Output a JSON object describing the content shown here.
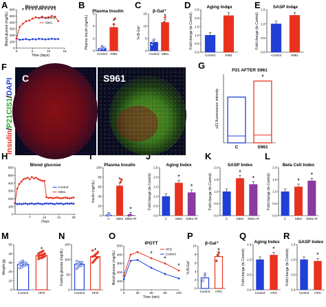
{
  "panels": {
    "A": {
      "letter": "A",
      "title": "Blood glucose",
      "ylabel": "Blood glucose (mg/dL)",
      "xlabel": "Time (days)",
      "legend": [
        "Control",
        "S961"
      ]
    },
    "B": {
      "letter": "B",
      "title": "Plasma Insulin",
      "ylabel": "Plasma insulin (ng/mL)"
    },
    "C": {
      "letter": "C",
      "title": "β-Gal⁺",
      "ylabel": "%-B-Gal⁺"
    },
    "D": {
      "letter": "D",
      "title": "Aging Index",
      "ylabel": "Fold change (to Control)"
    },
    "E": {
      "letter": "E",
      "title": "SASP Index",
      "ylabel": "Fold change (to Control)"
    },
    "F": {
      "letter": "F",
      "ylabel_parts": [
        "Insulin",
        "/",
        "P21CIS1",
        "/",
        "DAPI"
      ],
      "label_left": "C",
      "label_right": "S961"
    },
    "G": {
      "letter": "G",
      "title": "P21 AFTER S961",
      "ylabel": "p21 fluorescence intensity"
    },
    "H": {
      "letter": "H",
      "title": "Blood glucose",
      "xlabel": "Days",
      "legend": [
        "Control",
        "S961"
      ]
    },
    "I": {
      "letter": "I",
      "title": "Plasma Insulin",
      "ylabel": "Insulin (ng/mL)"
    },
    "J": {
      "letter": "J",
      "title": "Aging Index",
      "ylabel": "Fold change (to Control)"
    },
    "K": {
      "letter": "K",
      "title": "SASP Index",
      "ylabel": "Fold change (to Control)"
    },
    "L": {
      "letter": "L",
      "title": "Beta Cell Index",
      "ylabel": "Fold change (to Control)"
    },
    "M": {
      "letter": "M",
      "ylabel": "Weight (g)"
    },
    "N": {
      "letter": "N",
      "ylabel": "Fasting glucose (mg/dL)"
    },
    "O": {
      "letter": "O",
      "title": "IPGTT",
      "ylabel": "Blood glucose (mg/dL)",
      "xlabel": "Time (min)",
      "legend": [
        "HFD",
        "Control"
      ]
    },
    "P": {
      "letter": "P",
      "title": "β-Gal⁺",
      "ylabel": "% B-Gal⁺"
    },
    "Q": {
      "letter": "Q",
      "title": "Aging Index",
      "ylabel": "Fold change (to Control)"
    },
    "R": {
      "letter": "R",
      "title": "SASP Index",
      "ylabel": "Fold change (to Control)"
    }
  },
  "colors": {
    "control": "#1f3fd6",
    "s961": "#e8321e",
    "sr": "#8a3aa0",
    "hfd": "#e8321e"
  },
  "chart_data": [
    {
      "id": "A",
      "type": "line",
      "x": [
        0,
        1,
        2,
        3,
        4,
        5,
        6,
        7,
        8,
        9,
        10,
        11,
        12,
        13
      ],
      "xlim": [
        0,
        15
      ],
      "ylim": [
        0,
        600
      ],
      "xticks": [
        0,
        5,
        10,
        15
      ],
      "yticks": [
        0,
        100,
        200,
        300,
        400,
        500,
        600
      ],
      "series": [
        {
          "name": "Control",
          "values": [
            150,
            130,
            135,
            140,
            130,
            140,
            135,
            145,
            140,
            135,
            140,
            145,
            140,
            140
          ]
        },
        {
          "name": "S961",
          "values": [
            150,
            330,
            380,
            420,
            430,
            460,
            480,
            470,
            490,
            470,
            480,
            500,
            490,
            420
          ]
        }
      ]
    },
    {
      "id": "B",
      "type": "bar",
      "categories": [
        "Control",
        "S961"
      ],
      "values": [
        0.4,
        3.8
      ],
      "ylim": [
        0,
        6
      ],
      "yticks": [
        0,
        2,
        4,
        6
      ],
      "points": [
        [
          0.2,
          0.4,
          0.6,
          0.3,
          0.5
        ],
        [
          2.6,
          3.4,
          4.3,
          5.2
        ]
      ]
    },
    {
      "id": "C",
      "type": "bar",
      "categories": [
        "Control",
        "S961"
      ],
      "values": [
        3.5,
        11.5
      ],
      "ylim": [
        0,
        15
      ],
      "yticks": [
        0,
        5,
        10,
        15
      ],
      "points": [
        [
          2.5,
          3.6,
          4.5
        ],
        [
          9.5,
          11.5,
          13.5
        ]
      ]
    },
    {
      "id": "D",
      "type": "bar",
      "categories": [
        "Control",
        "S961"
      ],
      "values": [
        1.0,
        2.15
      ],
      "ylim": [
        0,
        2.5
      ],
      "yticks": [
        0.0,
        0.5,
        1.0,
        1.5,
        2.0,
        2.5
      ]
    },
    {
      "id": "E",
      "type": "bar",
      "categories": [
        "Control",
        "S961"
      ],
      "values": [
        1.0,
        1.3
      ],
      "ylim": [
        0,
        1.5
      ],
      "yticks": [
        0.0,
        0.5,
        1.0,
        1.5
      ]
    },
    {
      "id": "G",
      "type": "bar",
      "categories": [
        "C",
        "S961"
      ],
      "values": [
        100,
        135
      ],
      "ylim": [
        0,
        150
      ],
      "inner": [
        15,
        17
      ]
    },
    {
      "id": "H",
      "type": "line",
      "x": [
        0,
        1,
        2,
        3,
        4,
        5,
        6,
        7,
        8,
        9,
        10,
        11,
        12,
        13,
        14,
        15,
        16,
        17,
        18,
        19,
        20,
        21,
        22,
        23,
        24,
        25,
        26,
        27,
        28
      ],
      "xlim": [
        0,
        29
      ],
      "ylim": [
        0,
        600
      ],
      "xticks": [
        7,
        14,
        21,
        28
      ],
      "yticks": [
        0,
        100,
        200,
        300,
        400,
        500,
        600
      ],
      "series": [
        {
          "name": "Control",
          "values": [
            140,
            130,
            135,
            130,
            135,
            140,
            130,
            135,
            140,
            130,
            135,
            140,
            135,
            130,
            135,
            140,
            135,
            140,
            135,
            130,
            140,
            135,
            140,
            130,
            135,
            140,
            135,
            140,
            135
          ]
        },
        {
          "name": "S961",
          "values": [
            150,
            330,
            390,
            420,
            450,
            460,
            470,
            450,
            480,
            460,
            470,
            450,
            440,
            430,
            430,
            220,
            210,
            215,
            205,
            210,
            215,
            210,
            205,
            210,
            215,
            210,
            205,
            210,
            215
          ]
        }
      ]
    },
    {
      "id": "I",
      "type": "bar",
      "categories": [
        "C",
        "S961",
        "S961+R"
      ],
      "values": [
        1,
        62,
        1
      ],
      "ylim": [
        0,
        100
      ],
      "yticks": [
        0,
        20,
        40,
        60,
        80,
        100
      ],
      "points": [
        [
          0.5,
          1,
          1.5,
          2
        ],
        [
          45,
          55,
          60,
          70,
          75
        ],
        [
          0.5,
          1,
          1.5
        ]
      ]
    },
    {
      "id": "J",
      "type": "bar",
      "categories": [
        "C",
        "S961",
        "S961+R"
      ],
      "values": [
        1.0,
        1.7,
        1.2
      ],
      "ylim": [
        0,
        2.5
      ],
      "yticks": [
        0.0,
        0.5,
        1.0,
        1.5,
        2.0,
        2.5
      ]
    },
    {
      "id": "K",
      "type": "bar",
      "categories": [
        "C",
        "S961",
        "S961+R"
      ],
      "values": [
        1.0,
        1.55,
        1.3
      ],
      "ylim": [
        0,
        2.0
      ],
      "yticks": [
        0.0,
        0.5,
        1.0,
        1.5,
        2.0
      ]
    },
    {
      "id": "L",
      "type": "bar",
      "categories": [
        "C",
        "S961",
        "S961+R"
      ],
      "values": [
        1.0,
        1.2,
        1.45
      ],
      "ylim": [
        0,
        2.0
      ],
      "yticks": [
        0.0,
        0.5,
        1.0,
        1.5,
        2.0
      ]
    },
    {
      "id": "M",
      "type": "bar",
      "categories": [
        "Control",
        "HFD"
      ],
      "values": [
        28,
        38
      ],
      "ylim": [
        0,
        50
      ],
      "yticks": [
        0,
        10,
        20,
        30,
        40,
        50
      ],
      "points": [
        [
          24,
          25,
          26,
          27,
          27,
          28,
          28,
          29,
          29,
          30,
          30,
          31,
          32
        ],
        [
          34,
          35,
          35,
          36,
          37,
          37,
          38,
          38,
          39,
          40,
          40,
          41,
          42,
          43
        ]
      ]
    },
    {
      "id": "N",
      "type": "bar",
      "categories": [
        "Control",
        "HFD"
      ],
      "values": [
        85,
        110
      ],
      "ylim": [
        0,
        150
      ],
      "yticks": [
        0,
        50,
        100,
        150
      ],
      "points": [
        [
          70,
          75,
          78,
          80,
          82,
          85,
          85,
          88,
          90,
          92,
          95
        ],
        [
          90,
          95,
          100,
          105,
          108,
          110,
          112,
          115,
          120,
          125,
          130
        ]
      ]
    },
    {
      "id": "O",
      "type": "line",
      "x": [
        0,
        15,
        30,
        60,
        90,
        120
      ],
      "xlim": [
        0,
        120
      ],
      "ylim": [
        0,
        500
      ],
      "xticks": [
        0,
        30,
        60,
        90,
        120
      ],
      "yticks": [
        0,
        100,
        200,
        300,
        400,
        500
      ],
      "series": [
        {
          "name": "HFD",
          "values": [
            160,
            400,
            430,
            360,
            300,
            220
          ]
        },
        {
          "name": "Control",
          "values": [
            120,
            330,
            340,
            250,
            180,
            130
          ]
        }
      ]
    },
    {
      "id": "P",
      "type": "bar",
      "categories": [
        "Control",
        "HFD"
      ],
      "values": [
        2.5,
        7.5
      ],
      "ylim": [
        0,
        10
      ],
      "yticks": [
        0,
        2,
        4,
        6,
        8,
        10
      ],
      "points": [
        [
          1.8,
          2.5,
          3.5
        ],
        [
          6.5,
          7.8,
          8.5
        ]
      ]
    },
    {
      "id": "Q",
      "type": "bar",
      "categories": [
        "Control",
        "HFD"
      ],
      "values": [
        1.0,
        1.15
      ],
      "ylim": [
        0,
        1.5
      ],
      "yticks": [
        0.0,
        0.5,
        1.0,
        1.5
      ]
    },
    {
      "id": "R",
      "type": "bar",
      "categories": [
        "Control",
        "HFD"
      ],
      "values": [
        1.0,
        0.95
      ],
      "ylim": [
        0,
        1.5
      ],
      "yticks": [
        0.0,
        0.5,
        1.0,
        1.5
      ]
    }
  ]
}
